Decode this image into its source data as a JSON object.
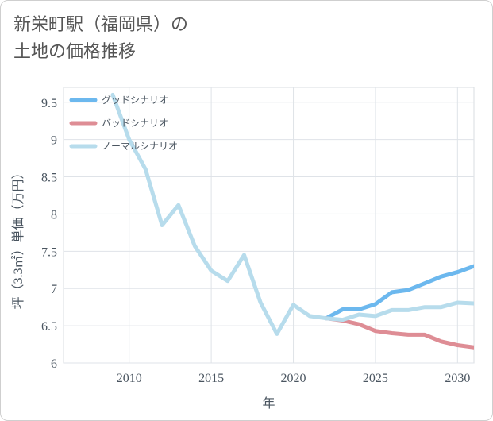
{
  "title_line1": "新栄町駅（福岡県）の",
  "title_line2": "土地の価格推移",
  "chart_data": {
    "type": "line",
    "xlabel": "年",
    "ylabel": "坪（3.3㎡）単価（万円）",
    "xlim": [
      2006,
      2031
    ],
    "ylim": [
      6,
      9.7
    ],
    "x_ticks": [
      "2010",
      "2015",
      "2020",
      "2025",
      "2030"
    ],
    "y_ticks": [
      "6",
      "6.5",
      "7",
      "7.5",
      "8",
      "8.5",
      "9",
      "9.5"
    ],
    "grid": true,
    "legend_position": "top-left",
    "series": [
      {
        "name": "グッドシナリオ",
        "color": "#6cb8ee",
        "x": [
          2022,
          2023,
          2024,
          2025,
          2026,
          2027,
          2028,
          2029,
          2030,
          2031
        ],
        "y": [
          6.6,
          6.72,
          6.72,
          6.79,
          6.95,
          6.98,
          7.07,
          7.16,
          7.22,
          7.3
        ]
      },
      {
        "name": "バッドシナリオ",
        "color": "#de8d95",
        "x": [
          2022,
          2023,
          2024,
          2025,
          2026,
          2027,
          2028,
          2029,
          2030,
          2031
        ],
        "y": [
          6.6,
          6.57,
          6.52,
          6.43,
          6.4,
          6.38,
          6.38,
          6.29,
          6.24,
          6.21
        ]
      },
      {
        "name": "ノーマルシナリオ",
        "color": "#b7dcec",
        "x": [
          2009,
          2010,
          2011,
          2012,
          2013,
          2014,
          2015,
          2016,
          2017,
          2018,
          2019,
          2020,
          2021,
          2022,
          2023,
          2024,
          2025,
          2026,
          2027,
          2028,
          2029,
          2030,
          2031
        ],
        "y": [
          9.6,
          9.0,
          8.6,
          7.85,
          8.12,
          7.57,
          7.24,
          7.1,
          7.45,
          6.81,
          6.39,
          6.78,
          6.63,
          6.6,
          6.58,
          6.65,
          6.63,
          6.71,
          6.71,
          6.75,
          6.75,
          6.81,
          6.8
        ]
      }
    ]
  }
}
